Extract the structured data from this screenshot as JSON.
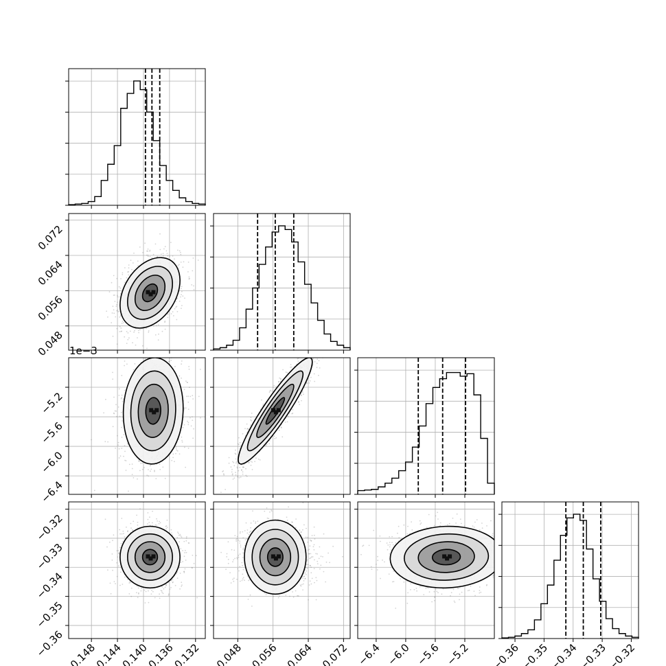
{
  "chart_data": {
    "type": "corner",
    "n_params": 4,
    "grid": true,
    "parameters": [
      {
        "index": 0,
        "range": [
          -0.1515,
          -0.1305
        ],
        "ticks": [
          -0.148,
          -0.144,
          -0.14,
          -0.136,
          -0.132
        ],
        "tick_labels": [
          "−0.148",
          "−0.144",
          "−0.140",
          "−0.136",
          "−0.132"
        ],
        "quantiles": [
          -0.1397,
          -0.1387,
          -0.1375
        ],
        "offset_label": ""
      },
      {
        "index": 1,
        "range": [
          0.0425,
          0.0735
        ],
        "ticks": [
          0.048,
          0.056,
          0.064,
          0.072
        ],
        "tick_labels": [
          "0.048",
          "0.056",
          "0.064",
          "0.072"
        ],
        "quantiles": [
          0.0525,
          0.0565,
          0.0607
        ],
        "offset_label": ""
      },
      {
        "index": 2,
        "range": [
          -6.65,
          -4.8
        ],
        "ticks": [
          -6.4,
          -6.0,
          -5.6,
          -5.2
        ],
        "tick_labels": [
          "−6.4",
          "−6.0",
          "−5.6",
          "−5.2"
        ],
        "quantiles": [
          -5.83,
          -5.5,
          -5.19
        ],
        "offset_label": "1e−3"
      },
      {
        "index": 3,
        "range": [
          -0.3645,
          -0.3175
        ],
        "ticks": [
          -0.36,
          -0.35,
          -0.34,
          -0.33,
          -0.32
        ],
        "tick_labels": [
          "−0.36",
          "−0.35",
          "−0.34",
          "−0.33",
          "−0.32"
        ],
        "quantiles": [
          -0.3425,
          -0.3365,
          -0.3305
        ],
        "offset_label": ""
      }
    ],
    "histograms": [
      {
        "param": 0,
        "heights": [
          0.005,
          0.01,
          0.015,
          0.03,
          0.07,
          0.2,
          0.33,
          0.48,
          0.78,
          0.9,
          1.0,
          0.93,
          0.75,
          0.52,
          0.32,
          0.2,
          0.12,
          0.06,
          0.03,
          0.015,
          0.01
        ]
      },
      {
        "param": 1,
        "heights": [
          0.01,
          0.02,
          0.04,
          0.08,
          0.18,
          0.33,
          0.5,
          0.69,
          0.83,
          0.95,
          1.0,
          0.97,
          0.87,
          0.71,
          0.53,
          0.38,
          0.24,
          0.13,
          0.07,
          0.04,
          0.02
        ]
      },
      {
        "param": 2,
        "heights": [
          0.03,
          0.035,
          0.04,
          0.06,
          0.09,
          0.13,
          0.19,
          0.26,
          0.38,
          0.55,
          0.73,
          0.86,
          0.93,
          0.98,
          0.98,
          0.95,
          0.97,
          0.8,
          0.45,
          0.09
        ]
      },
      {
        "param": 3,
        "heights": [
          0.005,
          0.01,
          0.02,
          0.04,
          0.07,
          0.15,
          0.28,
          0.43,
          0.63,
          0.83,
          0.97,
          1.0,
          0.95,
          0.72,
          0.48,
          0.3,
          0.16,
          0.08,
          0.04,
          0.02,
          0.01
        ]
      }
    ],
    "pairs": [
      {
        "x": 0,
        "y": 1,
        "mean": [
          -0.139,
          0.0555
        ],
        "std": [
          0.0023,
          0.004
        ],
        "corr": 0.35
      },
      {
        "x": 0,
        "y": 2,
        "mean": [
          -0.1385,
          -5.52
        ],
        "std": [
          0.0023,
          0.36
        ],
        "corr": 0.05
      },
      {
        "x": 1,
        "y": 2,
        "mean": [
          0.0565,
          -5.52
        ],
        "std": [
          0.0042,
          0.36
        ],
        "corr": 0.92
      },
      {
        "x": 0,
        "y": 3,
        "mean": [
          -0.139,
          -0.3365
        ],
        "std": [
          0.0023,
          0.0053
        ],
        "corr": 0.0
      },
      {
        "x": 1,
        "y": 3,
        "mean": [
          0.0565,
          -0.3365
        ],
        "std": [
          0.0042,
          0.0053
        ],
        "corr": 0.0
      },
      {
        "x": 2,
        "y": 3,
        "mean": [
          -5.45,
          -0.3365
        ],
        "std": [
          0.38,
          0.0053
        ],
        "corr": 0.05
      }
    ],
    "contour_levels": [
      "0.5 sigma",
      "1 sigma",
      "1.5 sigma",
      "2 sigma"
    ]
  },
  "colors": {
    "line": "#000000",
    "grid": "#b0b0b0",
    "points": "#808080"
  }
}
